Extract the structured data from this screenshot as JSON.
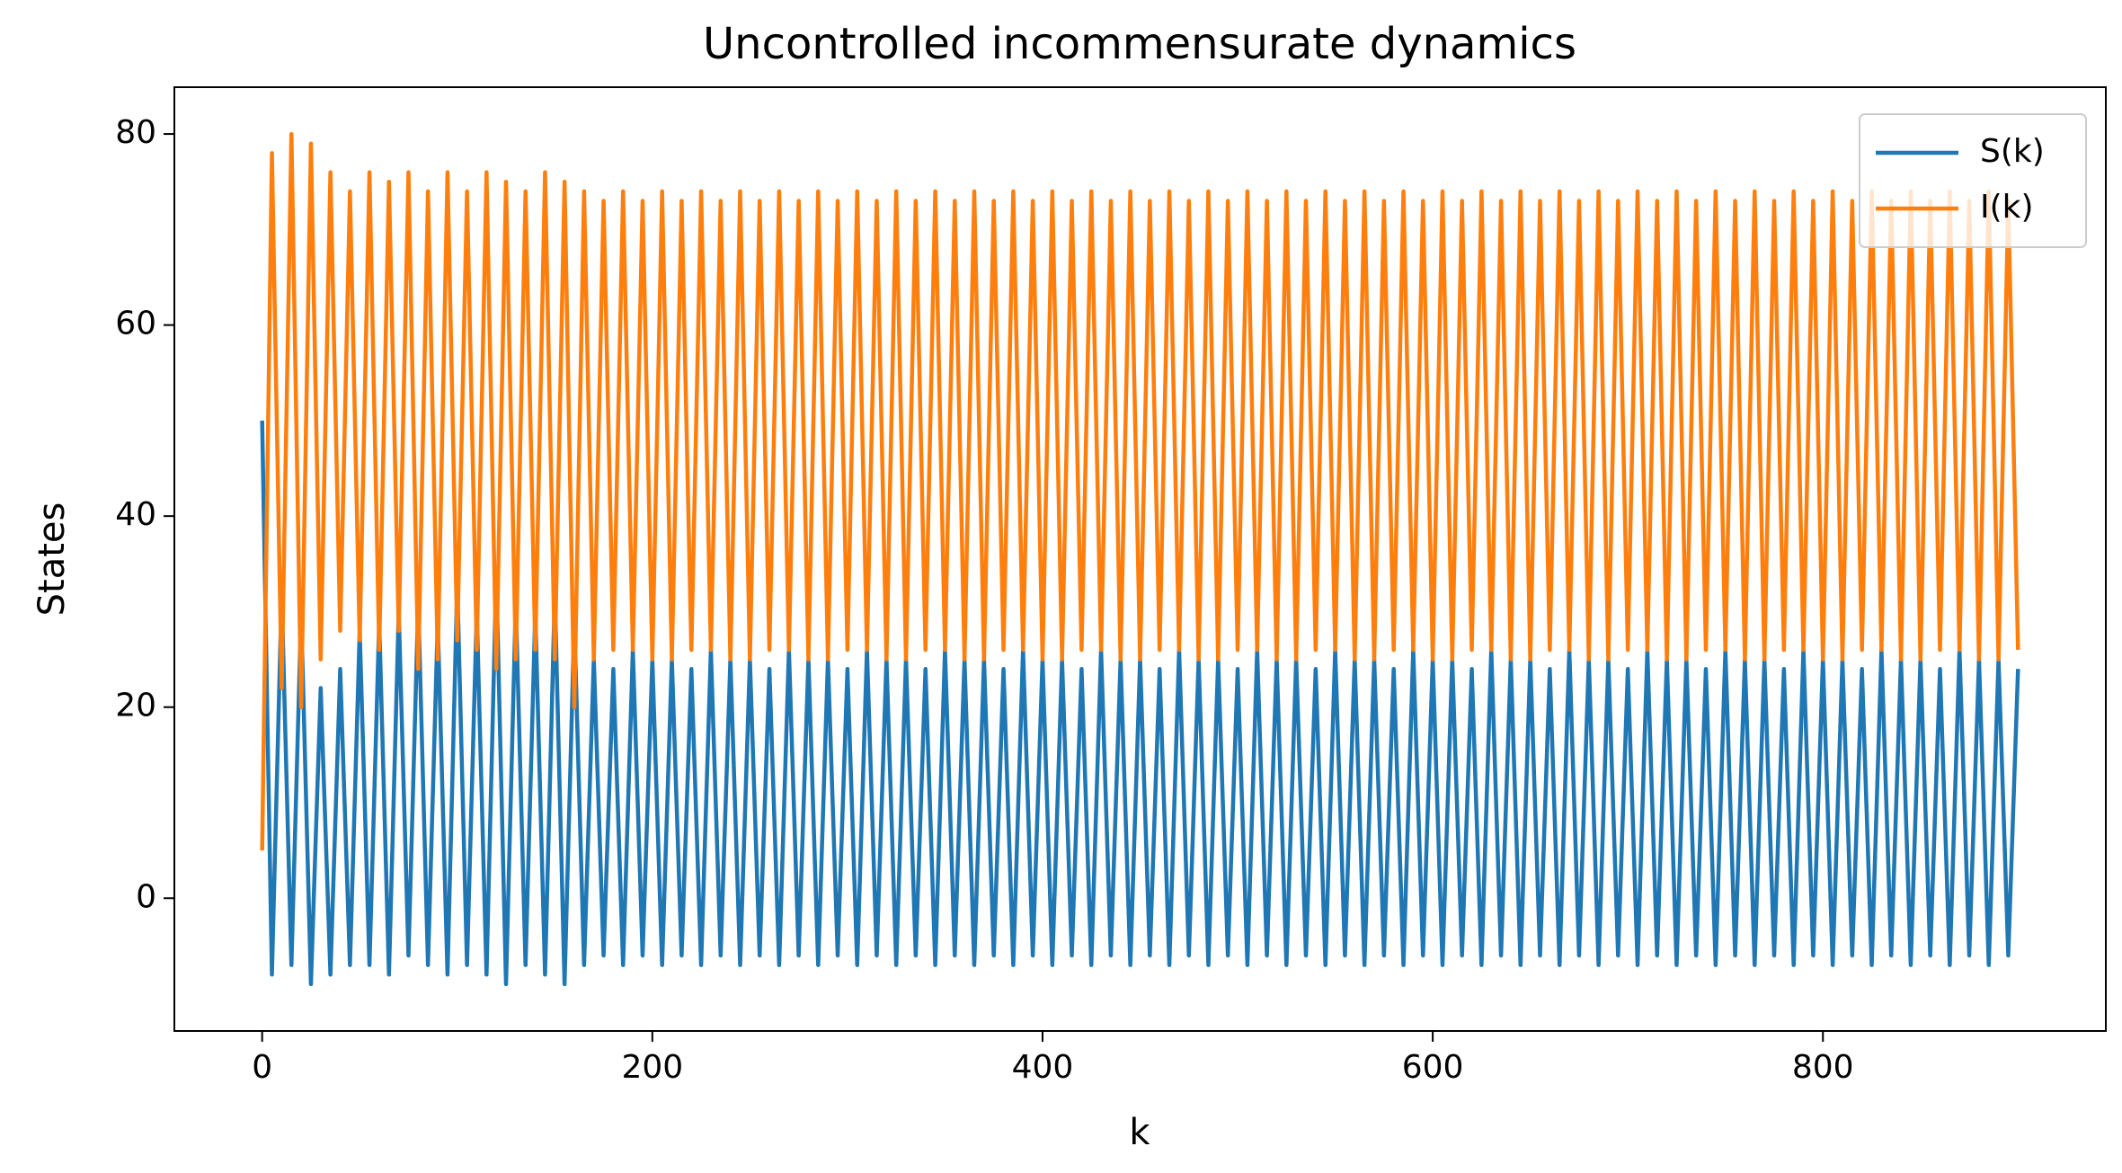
{
  "chart_data": {
    "type": "line",
    "title": "Uncontrolled incommensurate dynamics",
    "xlabel": "k",
    "ylabel": "States",
    "x": [
      0,
      5,
      10,
      15,
      20,
      25,
      30,
      35,
      40,
      45,
      50,
      55,
      60,
      65,
      70,
      75,
      80,
      85,
      90,
      95,
      100,
      105,
      110,
      115,
      120,
      125,
      130,
      135,
      140,
      145,
      150,
      155,
      160,
      165,
      170,
      175,
      180,
      185,
      190,
      195,
      200,
      205,
      210,
      215,
      220,
      225,
      230,
      235,
      240,
      245,
      250,
      255,
      260,
      265,
      270,
      275,
      280,
      285,
      290,
      295,
      300,
      305,
      310,
      315,
      320,
      325,
      330,
      335,
      340,
      345,
      350,
      355,
      360,
      365,
      370,
      375,
      380,
      385,
      390,
      395,
      400,
      405,
      410,
      415,
      420,
      425,
      430,
      435,
      440,
      445,
      450,
      455,
      460,
      465,
      470,
      475,
      480,
      485,
      490,
      495,
      500,
      505,
      510,
      515,
      520,
      525,
      530,
      535,
      540,
      545,
      550,
      555,
      560,
      565,
      570,
      575,
      580,
      585,
      590,
      595,
      600,
      605,
      610,
      615,
      620,
      625,
      630,
      635,
      640,
      645,
      650,
      655,
      660,
      665,
      670,
      675,
      680,
      685,
      690,
      695,
      700,
      705,
      710,
      715,
      720,
      725,
      730,
      735,
      740,
      745,
      750,
      755,
      760,
      765,
      770,
      775,
      780,
      785,
      790,
      795,
      800,
      805,
      810,
      815,
      820,
      825,
      830,
      835,
      840,
      845,
      850,
      855,
      860,
      865,
      870,
      875,
      880,
      885,
      890,
      895,
      900
    ],
    "series": [
      {
        "name": "S(k)",
        "color": "#1f77b4",
        "values": [
          50,
          -8,
          32,
          -7,
          30,
          -9,
          22,
          -8,
          24,
          -7,
          28,
          -7,
          29,
          -8,
          30,
          -6,
          31,
          -7,
          29,
          -8,
          33,
          -7,
          30,
          -8,
          34,
          -9,
          31,
          -7,
          30,
          -8,
          32,
          -9,
          29,
          -7,
          25,
          -6,
          24,
          -7,
          26,
          -6,
          25,
          -7,
          25,
          -6,
          24,
          -7,
          26,
          -6,
          25,
          -7,
          25,
          -6,
          24,
          -7,
          26,
          -6,
          25,
          -7,
          25,
          -6,
          24,
          -7,
          26,
          -6,
          25,
          -7,
          25,
          -6,
          24,
          -7,
          26,
          -6,
          25,
          -7,
          25,
          -6,
          24,
          -7,
          26,
          -6,
          25,
          -7,
          25,
          -6,
          24,
          -7,
          26,
          -6,
          25,
          -7,
          25,
          -6,
          24,
          -7,
          26,
          -6,
          25,
          -7,
          25,
          -6,
          24,
          -7,
          26,
          -6,
          25,
          -7,
          25,
          -6,
          24,
          -7,
          26,
          -6,
          25,
          -7,
          25,
          -6,
          24,
          -7,
          26,
          -6,
          25,
          -7,
          25,
          -6,
          24,
          -7,
          26,
          -6,
          25,
          -7,
          25,
          -6,
          24,
          -7,
          26,
          -6,
          25,
          -7,
          25,
          -6,
          24,
          -7,
          26,
          -6,
          25,
          -7,
          25,
          -6,
          24,
          -7,
          26,
          -6,
          25,
          -7,
          25,
          -6,
          24,
          -7,
          26,
          -6,
          25,
          -7,
          25,
          -6,
          24,
          -7,
          26,
          -6,
          25,
          -7,
          25,
          -6,
          24,
          -7,
          26,
          -6,
          25,
          -7,
          25,
          -6,
          24
        ]
      },
      {
        "name": "I(k)",
        "color": "#ff7f0e",
        "values": [
          5,
          78,
          22,
          80,
          20,
          79,
          25,
          76,
          28,
          74,
          27,
          76,
          26,
          75,
          28,
          76,
          24,
          74,
          25,
          76,
          27,
          74,
          26,
          76,
          24,
          75,
          25,
          74,
          26,
          76,
          25,
          75,
          20,
          74,
          25,
          73,
          26,
          74,
          26,
          73,
          25,
          74,
          25,
          73,
          26,
          74,
          26,
          73,
          25,
          74,
          25,
          73,
          26,
          74,
          26,
          73,
          25,
          74,
          25,
          73,
          26,
          74,
          26,
          73,
          25,
          74,
          25,
          73,
          26,
          74,
          26,
          73,
          25,
          74,
          25,
          73,
          26,
          74,
          26,
          73,
          25,
          74,
          25,
          73,
          26,
          74,
          26,
          73,
          25,
          74,
          25,
          73,
          26,
          74,
          26,
          73,
          25,
          74,
          25,
          73,
          26,
          74,
          26,
          73,
          25,
          74,
          25,
          73,
          26,
          74,
          26,
          73,
          25,
          74,
          25,
          73,
          26,
          74,
          26,
          73,
          25,
          74,
          25,
          73,
          26,
          74,
          26,
          73,
          25,
          74,
          25,
          73,
          26,
          74,
          26,
          73,
          25,
          74,
          25,
          73,
          26,
          74,
          26,
          73,
          25,
          74,
          25,
          73,
          26,
          74,
          26,
          73,
          25,
          74,
          25,
          73,
          26,
          74,
          26,
          73,
          25,
          74,
          25,
          73,
          26,
          74,
          26,
          73,
          25,
          74,
          25,
          73,
          26,
          74,
          26,
          73,
          25,
          74,
          25,
          73,
          26
        ]
      }
    ],
    "xlim": [
      -45,
      945
    ],
    "ylim": [
      -13.9,
      84.9
    ],
    "xticks": [
      0,
      200,
      400,
      600,
      800
    ],
    "yticks": [
      0,
      20,
      40,
      60,
      80
    ],
    "grid": false,
    "legend": "upper right"
  }
}
